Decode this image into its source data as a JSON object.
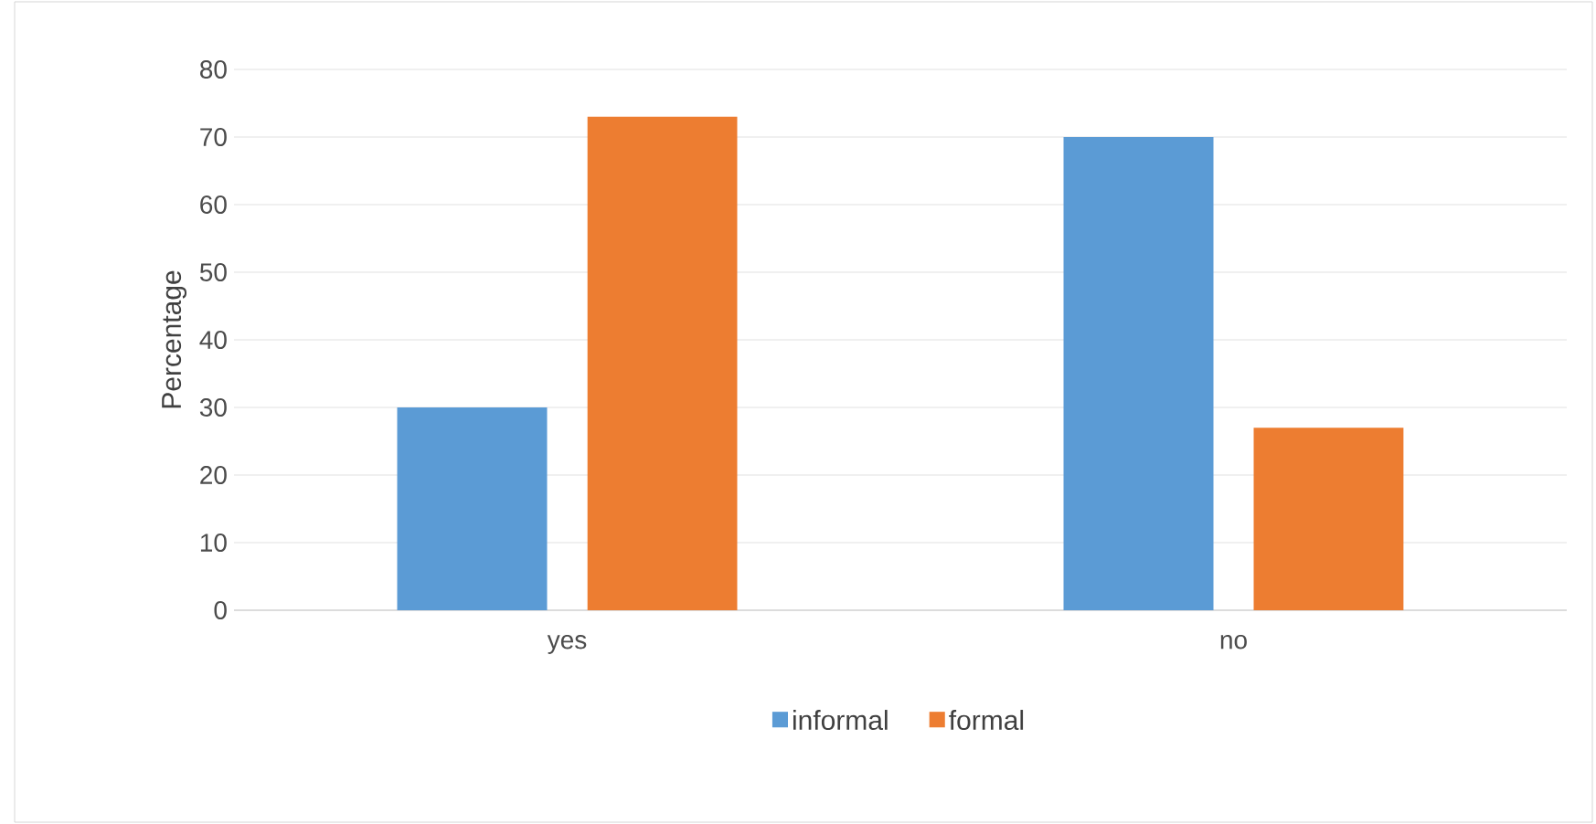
{
  "chart_data": {
    "type": "bar",
    "ylabel": "Percentage",
    "categories": [
      "yes",
      "no"
    ],
    "series": [
      {
        "name": "informal",
        "color": "#5b9bd5",
        "values": [
          30,
          70
        ]
      },
      {
        "name": "formal",
        "color": "#ed7d31",
        "values": [
          73,
          27
        ]
      }
    ],
    "ylim": [
      0,
      80
    ],
    "yticks": [
      0,
      10,
      20,
      30,
      40,
      50,
      60,
      70,
      80
    ],
    "grid": "y",
    "legend": "bottom"
  }
}
